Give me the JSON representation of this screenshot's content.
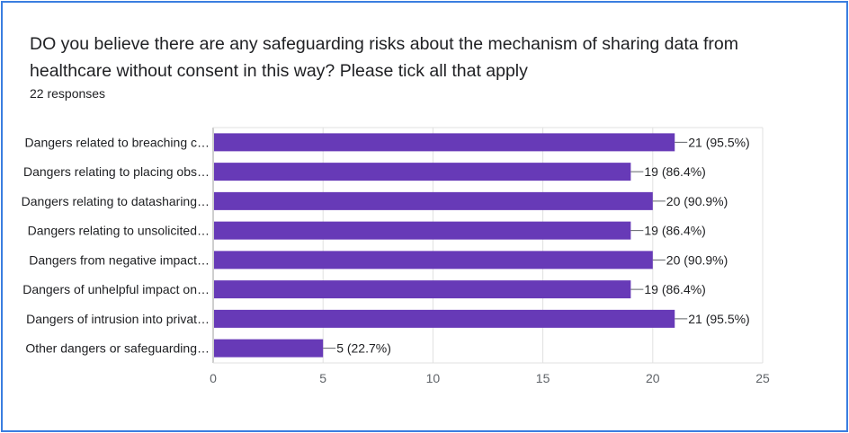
{
  "question": "DO you believe there are any safeguarding risks about the mechanism of sharing data from healthcare without consent in this way?  Please tick all that apply",
  "responses": "22 responses",
  "colors": {
    "bar": "#673ab7",
    "border": "#3a7ee0",
    "grid": "#e0e0e0",
    "axis": "#9e9e9e"
  },
  "chart_data": {
    "type": "bar",
    "orientation": "horizontal",
    "categories": [
      "Dangers related to breaching c…",
      "Dangers relating to placing obs…",
      "Dangers relating to datasharing…",
      "Dangers relating to unsolicited…",
      "Dangers from negative impact…",
      "Dangers of unhelpful impact on…",
      "Dangers of intrusion into privat…",
      "Other dangers or safeguarding…"
    ],
    "values": [
      21,
      19,
      20,
      19,
      20,
      19,
      21,
      5
    ],
    "value_labels": [
      "21 (95.5%)",
      "19 (86.4%)",
      "20 (90.9%)",
      "19 (86.4%)",
      "20 (90.9%)",
      "19 (86.4%)",
      "21 (95.5%)",
      "5 (22.7%)"
    ],
    "xlim": [
      0,
      25
    ],
    "xticks": [
      0,
      5,
      10,
      15,
      20,
      25
    ],
    "grid": true
  }
}
